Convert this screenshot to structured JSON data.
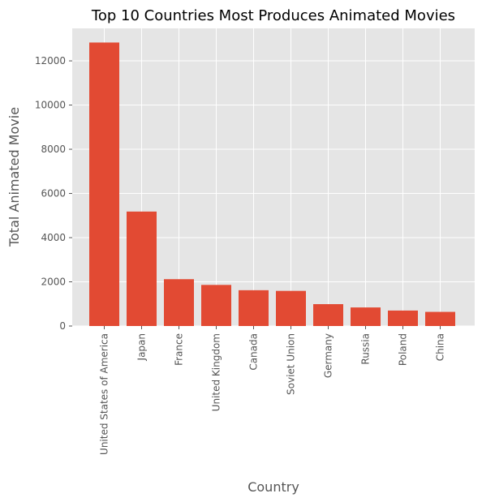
{
  "chart_data": {
    "type": "bar",
    "title": "Top 10 Countries Most Produces Animated Movies",
    "xlabel": "Country",
    "ylabel": "Total Animated Movie",
    "categories": [
      "United States of America",
      "Japan",
      "France",
      "United Kingdom",
      "Canada",
      "Soviet Union",
      "Germany",
      "Russia",
      "Poland",
      "China"
    ],
    "values": [
      12830,
      5180,
      2120,
      1860,
      1620,
      1590,
      990,
      840,
      700,
      640
    ],
    "ylim": [
      0,
      13470
    ],
    "yticks": [
      0,
      2000,
      4000,
      6000,
      8000,
      10000,
      12000
    ],
    "grid": true,
    "colors": {
      "bar": "#E24A33",
      "panel": "#E5E5E5",
      "grid": "#FFFFFF",
      "text": "#555555"
    }
  }
}
